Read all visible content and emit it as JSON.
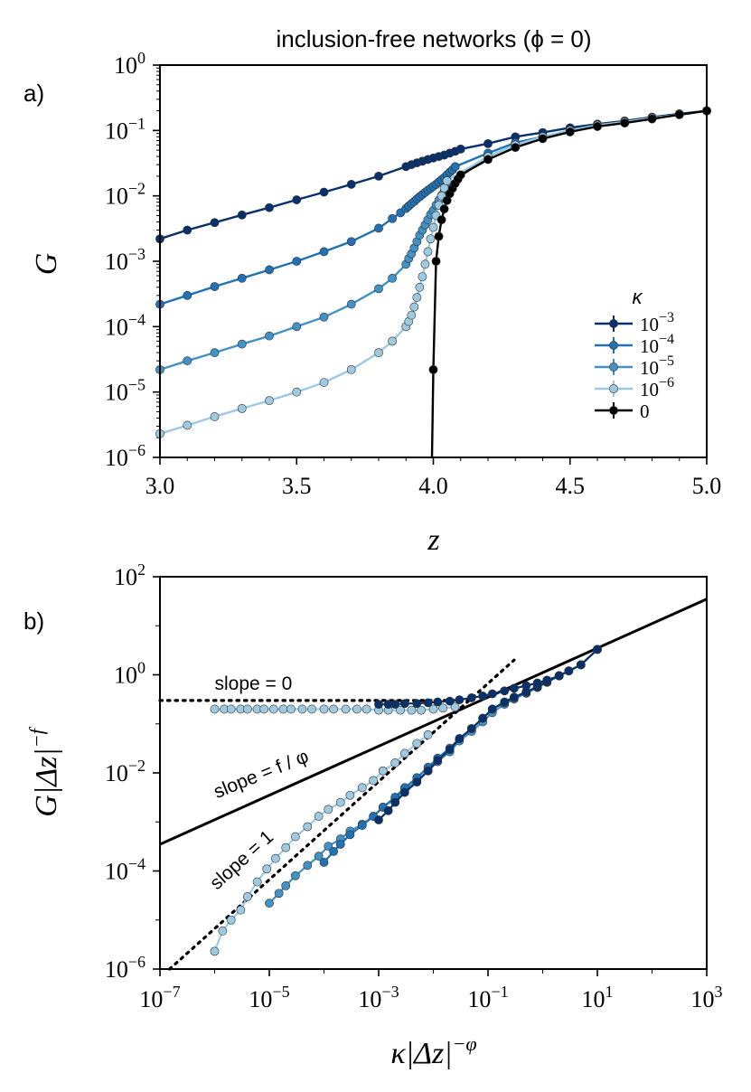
{
  "chart_data": [
    {
      "type": "line",
      "panel_label": "a)",
      "title": "inclusion-free networks (ϕ = 0)",
      "xlabel": "z",
      "ylabel": "G",
      "xlim": [
        3.0,
        5.0
      ],
      "ylim": [
        1e-06,
        1
      ],
      "yscale": "log",
      "x_ticks": [
        "3.0",
        "3.5",
        "4.0",
        "4.5",
        "5.0"
      ],
      "y_ticks": [
        {
          "base": "10",
          "exp": "−6"
        },
        {
          "base": "10",
          "exp": "−5"
        },
        {
          "base": "10",
          "exp": "−4"
        },
        {
          "base": "10",
          "exp": "−3"
        },
        {
          "base": "10",
          "exp": "−2"
        },
        {
          "base": "10",
          "exp": "−1"
        },
        {
          "base": "10",
          "exp": "0"
        }
      ],
      "legend_title": "κ",
      "legend_position": "lower-right",
      "series": [
        {
          "name": "1e-3",
          "label_base": "10",
          "label_exp": "−3",
          "color": "#08306b",
          "x": [
            3.0,
            3.1,
            3.2,
            3.3,
            3.4,
            3.5,
            3.6,
            3.7,
            3.8,
            3.9,
            3.92,
            3.94,
            3.96,
            3.98,
            4.0,
            4.02,
            4.04,
            4.06,
            4.08,
            4.1,
            4.2,
            4.3,
            4.4,
            4.5,
            4.6,
            4.7,
            4.8,
            4.9,
            5.0
          ],
          "y": [
            0.0022,
            0.003,
            0.0039,
            0.0051,
            0.0066,
            0.0087,
            0.0114,
            0.015,
            0.02,
            0.028,
            0.03,
            0.032,
            0.034,
            0.036,
            0.038,
            0.04,
            0.042,
            0.045,
            0.048,
            0.052,
            0.063,
            0.08,
            0.093,
            0.11,
            0.125,
            0.14,
            0.16,
            0.18,
            0.2
          ]
        },
        {
          "name": "1e-4",
          "label_base": "10",
          "label_exp": "−4",
          "color": "#2171b5",
          "x": [
            3.0,
            3.1,
            3.2,
            3.3,
            3.4,
            3.5,
            3.6,
            3.7,
            3.8,
            3.85,
            3.88,
            3.9,
            3.91,
            3.92,
            3.93,
            3.94,
            3.95,
            3.96,
            3.97,
            3.98,
            3.99,
            4.0,
            4.01,
            4.02,
            4.03,
            4.04,
            4.05,
            4.06,
            4.07,
            4.08,
            4.2,
            4.3,
            4.4,
            4.5,
            4.6,
            4.7,
            4.8,
            4.9,
            5.0
          ],
          "y": [
            0.00022,
            0.0003,
            0.00041,
            0.00055,
            0.00074,
            0.001,
            0.0014,
            0.002,
            0.0032,
            0.0045,
            0.0055,
            0.0064,
            0.007,
            0.0076,
            0.0082,
            0.009,
            0.0097,
            0.0105,
            0.0113,
            0.0122,
            0.013,
            0.014,
            0.015,
            0.0163,
            0.0177,
            0.019,
            0.021,
            0.023,
            0.025,
            0.028,
            0.045,
            0.065,
            0.08,
            0.1,
            0.12,
            0.135,
            0.155,
            0.175,
            0.2
          ]
        },
        {
          "name": "1e-5",
          "label_base": "10",
          "label_exp": "−5",
          "color": "#4292c6",
          "x": [
            3.0,
            3.1,
            3.2,
            3.3,
            3.4,
            3.5,
            3.6,
            3.7,
            3.8,
            3.85,
            3.9,
            3.91,
            3.92,
            3.93,
            3.94,
            3.95,
            3.96,
            3.97,
            3.98,
            3.99,
            4.0,
            4.01,
            4.02,
            4.03,
            4.04,
            4.05,
            4.2,
            4.3,
            4.4,
            4.5,
            4.6,
            4.7,
            4.8,
            4.9,
            5.0
          ],
          "y": [
            2.2e-05,
            3e-05,
            4e-05,
            5.4e-05,
            7.2e-05,
            0.0001,
            0.00014,
            0.00022,
            0.00038,
            0.00055,
            0.0009,
            0.0011,
            0.0013,
            0.0016,
            0.002,
            0.0025,
            0.003,
            0.0036,
            0.0043,
            0.0052,
            0.006,
            0.0072,
            0.0086,
            0.0102,
            0.012,
            0.014,
            0.04,
            0.06,
            0.08,
            0.1,
            0.12,
            0.135,
            0.155,
            0.175,
            0.2
          ]
        },
        {
          "name": "1e-6",
          "label_base": "10",
          "label_exp": "−6",
          "color": "#9ecae1",
          "x": [
            3.0,
            3.1,
            3.2,
            3.3,
            3.4,
            3.5,
            3.6,
            3.7,
            3.8,
            3.85,
            3.9,
            3.91,
            3.92,
            3.93,
            3.94,
            3.95,
            3.96,
            3.97,
            3.98,
            3.99,
            4.0,
            4.01,
            4.02,
            4.03,
            4.04,
            4.05,
            4.2,
            4.3,
            4.4,
            4.5,
            4.6,
            4.7,
            4.8,
            4.9,
            5.0
          ],
          "y": [
            2.3e-06,
            3.1e-06,
            4.2e-06,
            5.6e-06,
            7.4e-06,
            1e-05,
            1.4e-05,
            2.2e-05,
            4e-05,
            6e-05,
            0.0001,
            0.00012,
            0.00015,
            0.0002,
            0.00028,
            0.0004,
            0.00058,
            0.0009,
            0.0014,
            0.0022,
            0.0033,
            0.005,
            0.0072,
            0.01,
            0.0132,
            0.017,
            0.04,
            0.06,
            0.08,
            0.1,
            0.12,
            0.135,
            0.155,
            0.175,
            0.2
          ]
        },
        {
          "name": "0",
          "label_base": "0",
          "label_exp": "",
          "color": "#000000",
          "x": [
            3.995,
            4.0,
            4.01,
            4.02,
            4.03,
            4.04,
            4.05,
            4.06,
            4.07,
            4.08,
            4.09,
            4.1,
            4.2,
            4.3,
            4.4,
            4.5,
            4.6,
            4.7,
            4.8,
            4.9,
            5.0
          ],
          "y": [
            1e-06,
            2.2e-05,
            0.001,
            0.0024,
            0.0043,
            0.0063,
            0.0085,
            0.0108,
            0.013,
            0.0155,
            0.018,
            0.021,
            0.036,
            0.055,
            0.075,
            0.095,
            0.115,
            0.13,
            0.15,
            0.175,
            0.2
          ]
        }
      ]
    },
    {
      "type": "scatter",
      "panel_label": "b)",
      "xlabel": "κ|Δz|",
      "xlabel_exp": "−φ",
      "ylabel": "G|Δz|",
      "ylabel_exp": "−f",
      "xscale": "log",
      "yscale": "log",
      "xlim": [
        1e-07,
        1000
      ],
      "ylim": [
        1e-06,
        100
      ],
      "x_ticks": [
        {
          "base": "10",
          "exp": "−7"
        },
        {
          "base": "10",
          "exp": "−5"
        },
        {
          "base": "10",
          "exp": "−3"
        },
        {
          "base": "10",
          "exp": "−1"
        },
        {
          "base": "10",
          "exp": "1"
        },
        {
          "base": "10",
          "exp": "3"
        }
      ],
      "y_ticks": [
        {
          "base": "10",
          "exp": "−6"
        },
        {
          "base": "10",
          "exp": "−4"
        },
        {
          "base": "10",
          "exp": "−2"
        },
        {
          "base": "10",
          "exp": "0"
        },
        {
          "base": "10",
          "exp": "2"
        }
      ],
      "annotations": [
        {
          "text": "slope = 0",
          "x": 1e-06,
          "y": 0.5
        },
        {
          "text": "slope = f / φ",
          "x": 1.1e-06,
          "y": 0.003,
          "rotation": -22
        },
        {
          "text": "slope = 1",
          "x": 1.1e-06,
          "y": 4e-05,
          "rotation": -42
        }
      ],
      "reference_lines": [
        {
          "name": "slope 0",
          "style": "dotted",
          "x": [
            1e-07,
            0.05
          ],
          "y": [
            0.3,
            0.3
          ]
        },
        {
          "name": "slope f/phi",
          "style": "solid",
          "x": [
            1e-07,
            1000
          ],
          "y": [
            0.00035,
            35
          ]
        },
        {
          "name": "slope 1",
          "style": "dotted",
          "x": [
            1.5e-07,
            0.3
          ],
          "y": [
            1e-06,
            2
          ]
        }
      ],
      "series": [
        {
          "name": "1e-6",
          "color": "#9ecae1",
          "x": [
            1e-06,
            1.5e-06,
            2e-06,
            3e-06,
            4e-06,
            6e-06,
            8e-06,
            1.2e-05,
            1.8e-05,
            2.5e-05,
            4e-05,
            6e-05,
            0.0001,
            0.00015,
            0.00025,
            0.0004,
            0.0006,
            0.001,
            0.0015,
            0.0025,
            0.004,
            0.006,
            0.01,
            0.015,
            0.025
          ],
          "y": [
            0.2,
            0.2,
            0.2,
            0.2,
            0.2,
            0.2,
            0.2,
            0.2,
            0.2,
            0.2,
            0.2,
            0.2,
            0.2,
            0.2,
            0.2,
            0.2,
            0.2,
            0.19,
            0.19,
            0.19,
            0.19,
            0.19,
            0.2,
            0.21,
            0.22
          ]
        },
        {
          "name": "1e-6 lower",
          "color": "#9ecae1",
          "x": [
            1e-06,
            1.4e-06,
            2e-06,
            3e-06,
            4e-06,
            6e-06,
            9e-06,
            1.3e-05,
            2e-05,
            3e-05,
            5e-05,
            8e-05,
            0.00012,
            0.0002,
            0.0003,
            0.0005,
            0.0008,
            0.0012,
            0.002,
            0.003,
            0.005,
            0.008
          ],
          "y": [
            2.3e-06,
            6e-06,
            1e-05,
            1.6e-05,
            3e-05,
            6e-05,
            0.00011,
            0.00018,
            0.0003,
            0.0005,
            0.0008,
            0.0013,
            0.0018,
            0.0025,
            0.0035,
            0.005,
            0.007,
            0.011,
            0.016,
            0.025,
            0.04,
            0.06
          ]
        },
        {
          "name": "1e-5",
          "color": "#4292c6",
          "x": [
            1e-05,
            1.5e-05,
            2e-05,
            3e-05,
            5e-05,
            8e-05,
            0.00012,
            0.0002,
            0.0003,
            0.0005,
            0.0008,
            0.0012,
            0.002,
            0.003,
            0.005,
            0.008,
            0.012,
            0.02,
            0.03,
            0.05,
            0.08,
            0.12,
            0.2,
            0.3,
            0.5,
            0.8,
            1.2,
            2,
            3,
            5,
            10
          ],
          "y": [
            2.2e-05,
            3.5e-05,
            5e-05,
            8e-05,
            0.00013,
            0.0002,
            0.00032,
            0.00045,
            0.00065,
            0.0009,
            0.0013,
            0.002,
            0.003,
            0.0045,
            0.007,
            0.011,
            0.017,
            0.027,
            0.045,
            0.07,
            0.11,
            0.17,
            0.25,
            0.32,
            0.42,
            0.55,
            0.7,
            0.95,
            1.2,
            1.6,
            3.3
          ]
        },
        {
          "name": "1e-4",
          "color": "#2171b5",
          "x": [
            0.0001,
            0.00015,
            0.0002,
            0.0003,
            0.0005,
            0.0008,
            0.0012,
            0.002,
            0.003,
            0.005,
            0.008,
            0.012,
            0.02,
            0.03,
            0.05,
            0.08,
            0.12,
            0.2,
            0.3,
            0.5,
            0.8,
            1.2,
            2,
            3,
            5,
            10
          ],
          "y": [
            0.00015,
            0.00025,
            0.00035,
            0.00055,
            0.00085,
            0.0013,
            0.002,
            0.0032,
            0.005,
            0.008,
            0.013,
            0.02,
            0.032,
            0.05,
            0.08,
            0.13,
            0.2,
            0.27,
            0.34,
            0.44,
            0.56,
            0.72,
            0.95,
            1.2,
            1.6,
            3.3
          ]
        },
        {
          "name": "1e-3",
          "color": "#08306b",
          "x": [
            0.001,
            0.0015,
            0.002,
            0.003,
            0.005,
            0.008,
            0.012,
            0.02,
            0.03,
            0.05,
            0.08,
            0.12,
            0.2,
            0.3,
            0.5,
            0.8,
            1.2,
            2,
            3,
            5,
            10
          ],
          "y": [
            0.0011,
            0.0017,
            0.0025,
            0.004,
            0.0065,
            0.011,
            0.018,
            0.03,
            0.05,
            0.08,
            0.13,
            0.2,
            0.28,
            0.35,
            0.45,
            0.57,
            0.73,
            0.97,
            1.2,
            1.6,
            3.3
          ]
        },
        {
          "name": "1e-3 upper",
          "color": "#08306b",
          "x": [
            0.001,
            0.0015,
            0.002,
            0.003,
            0.005,
            0.008,
            0.012,
            0.02,
            0.03,
            0.05,
            0.08,
            0.12,
            0.2,
            0.3,
            0.5,
            0.8,
            1.2,
            2
          ],
          "y": [
            0.25,
            0.25,
            0.25,
            0.26,
            0.26,
            0.27,
            0.28,
            0.29,
            0.31,
            0.34,
            0.37,
            0.41,
            0.47,
            0.53,
            0.6,
            0.68,
            0.78,
            0.95
          ]
        }
      ]
    }
  ]
}
